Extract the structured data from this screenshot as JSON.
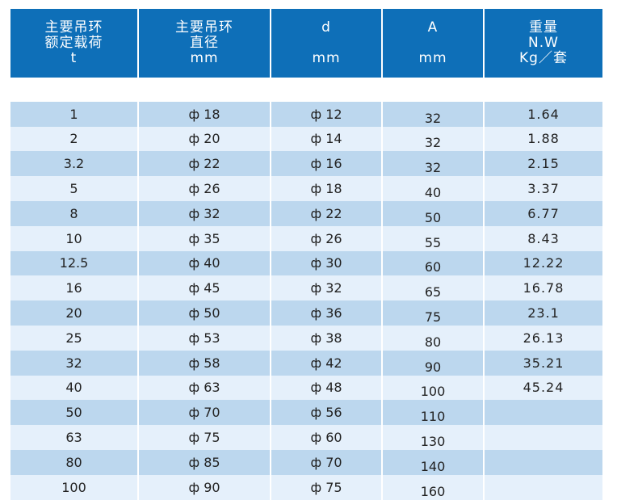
{
  "headers": [
    {
      "lines": [
        "主要吊环",
        "额定载荷",
        "t"
      ]
    },
    {
      "lines": [
        "主要吊环",
        "直径",
        "mm"
      ]
    },
    {
      "lines": [
        "d",
        "",
        "mm"
      ]
    },
    {
      "lines": [
        "A",
        "",
        "mm"
      ]
    },
    {
      "lines": [
        "重量",
        "N.W",
        "Kg／套"
      ]
    }
  ],
  "rows": [
    [
      "1",
      "ф 18",
      "ф 12",
      "32",
      "1.64"
    ],
    [
      "2",
      "ф 20",
      "ф 14",
      "32",
      "1.88"
    ],
    [
      "3.2",
      "ф 22",
      "ф 16",
      "32",
      "2.15"
    ],
    [
      "5",
      "ф 26",
      "ф 18",
      "40",
      "3.37"
    ],
    [
      "8",
      "ф 32",
      "ф 22",
      "50",
      "6.77"
    ],
    [
      "10",
      "ф 35",
      "ф 26",
      "55",
      "8.43"
    ],
    [
      "12.5",
      "ф 40",
      "ф 30",
      "60",
      "12.22"
    ],
    [
      "16",
      "ф 45",
      "ф 32",
      "65",
      "16.78"
    ],
    [
      "20",
      "ф 50",
      "ф 36",
      "75",
      "23.1"
    ],
    [
      "25",
      "ф 53",
      "ф 38",
      "80",
      "26.13"
    ],
    [
      "32",
      "ф 58",
      "ф 42",
      "90",
      "35.21"
    ],
    [
      "40",
      "ф 63",
      "ф 48",
      "100",
      "45.24"
    ],
    [
      "50",
      "ф 70",
      "ф 56",
      "110",
      ""
    ],
    [
      "63",
      "ф 75",
      "ф 60",
      "130",
      ""
    ],
    [
      "80",
      "ф 85",
      "ф 70",
      "140",
      ""
    ],
    [
      "100",
      "ф 90",
      "ф 75",
      "160",
      ""
    ]
  ],
  "colors": {
    "header_bg": "#0e6fb8",
    "row_dark": "#bcd7ee",
    "row_light": "#e5f0fb"
  }
}
